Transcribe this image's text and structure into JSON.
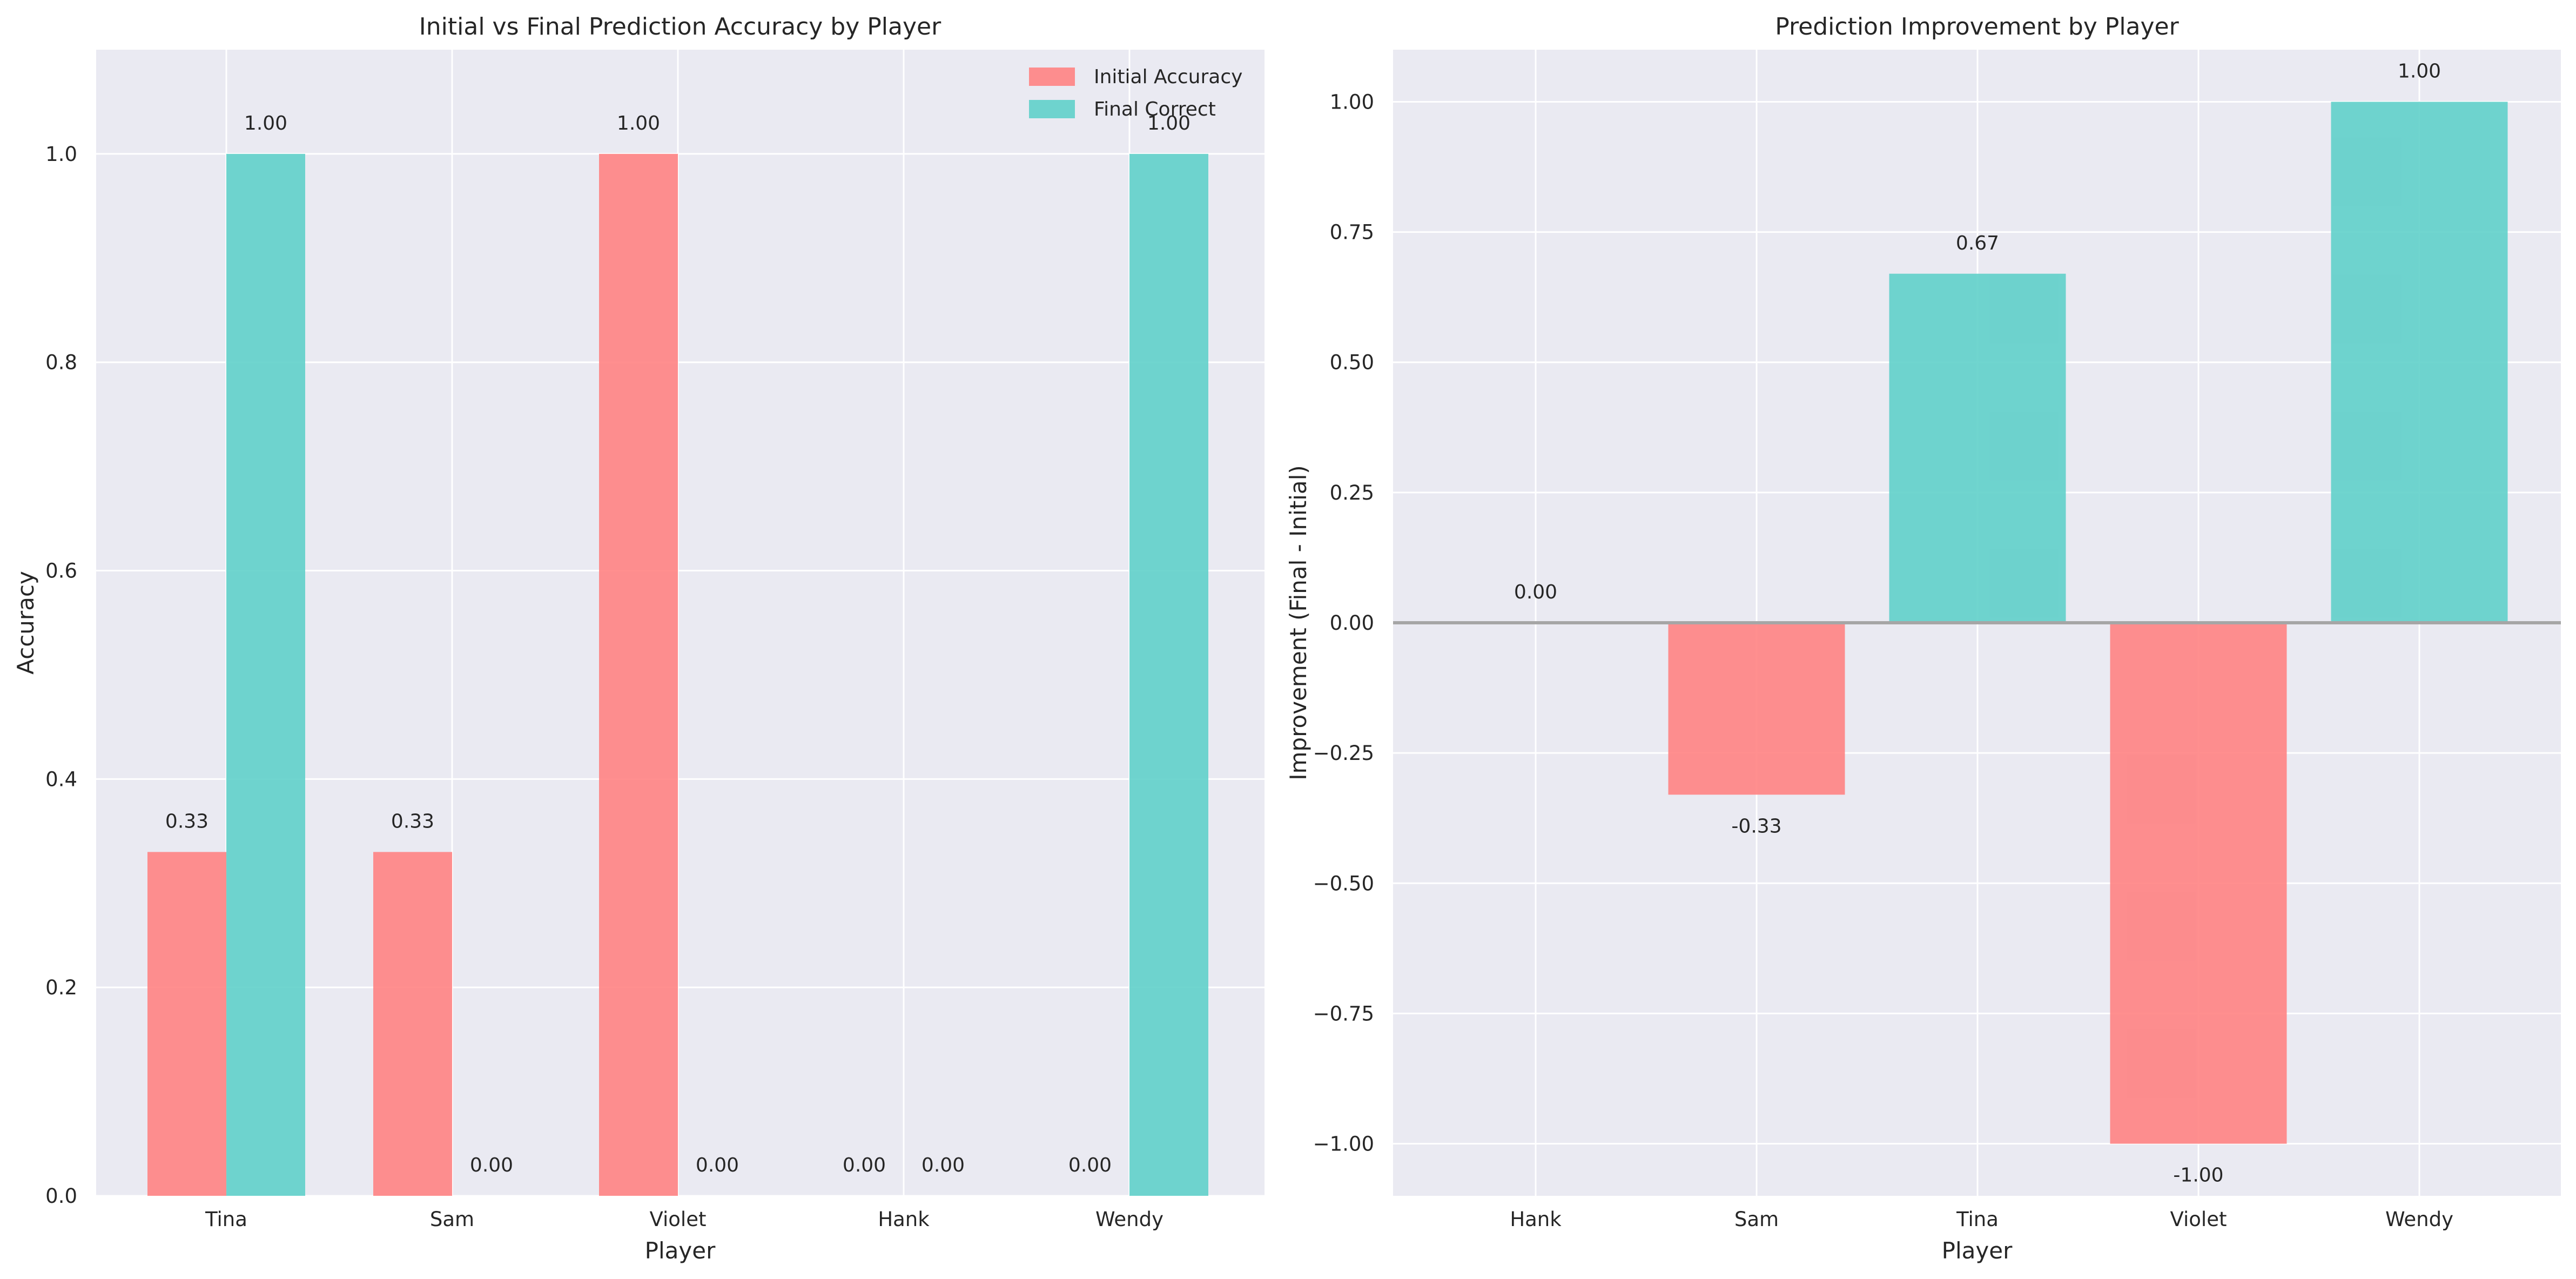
{
  "chart_data": [
    {
      "type": "bar",
      "title": "Initial vs Final Prediction Accuracy by Player",
      "xlabel": "Player",
      "ylabel": "Accuracy",
      "categories": [
        "Tina",
        "Sam",
        "Violet",
        "Hank",
        "Wendy"
      ],
      "series": [
        {
          "name": "Initial Accuracy",
          "values": [
            0.33,
            0.33,
            1.0,
            0.0,
            0.0
          ],
          "color": "#ff7f7f"
        },
        {
          "name": "Final Correct",
          "values": [
            1.0,
            0.0,
            0.0,
            0.0,
            1.0
          ],
          "color": "#5ccfc8"
        }
      ],
      "data_labels": [
        [
          "0.33",
          "0.33",
          "1.00",
          "0.00",
          "0.00"
        ],
        [
          "1.00",
          "0.00",
          "0.00",
          "0.00",
          "1.00"
        ]
      ],
      "ylim": [
        0,
        1.1
      ],
      "yticks": [
        0.0,
        0.2,
        0.4,
        0.6,
        0.8,
        1.0
      ],
      "ytick_labels": [
        "0.0",
        "0.2",
        "0.4",
        "0.6",
        "0.8",
        "1.0"
      ],
      "grid": true,
      "legend": "top-right"
    },
    {
      "type": "bar",
      "title": "Prediction Improvement by Player",
      "xlabel": "Player",
      "ylabel": "Improvement (Final - Initial)",
      "categories": [
        "Hank",
        "Sam",
        "Tina",
        "Violet",
        "Wendy"
      ],
      "values": [
        0.0,
        -0.33,
        0.67,
        -1.0,
        1.0
      ],
      "data_labels": [
        "0.00",
        "-0.33",
        "0.67",
        "-1.00",
        "1.00"
      ],
      "colors": {
        "positive": "#5ccfc8",
        "negative": "#ff7f7f"
      },
      "ylim": [
        -1.1,
        1.1
      ],
      "yticks": [
        -1.0,
        -0.75,
        -0.5,
        -0.25,
        0.0,
        0.25,
        0.5,
        0.75,
        1.0
      ],
      "ytick_labels": [
        "−1.00",
        "−0.75",
        "−0.50",
        "−0.25",
        "0.00",
        "0.25",
        "0.50",
        "0.75",
        "1.00"
      ],
      "zero_line": true,
      "grid": true
    }
  ]
}
